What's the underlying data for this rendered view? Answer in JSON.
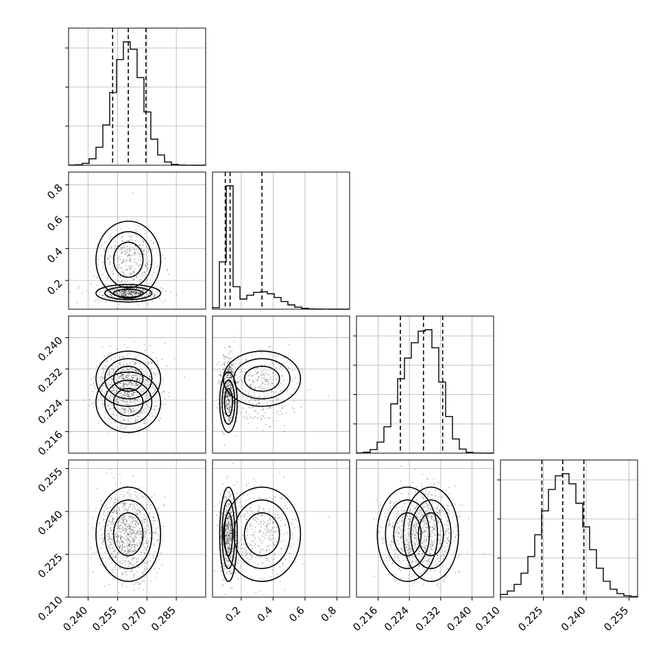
{
  "chart_data": {
    "type": "corner",
    "n_params": 4,
    "grid": true,
    "params": [
      {
        "range": [
          0.23,
          0.3
        ],
        "ticks": [
          "0.240",
          "0.255",
          "0.270",
          "0.285"
        ],
        "tick_values": [
          0.24,
          0.255,
          0.27,
          0.285
        ],
        "quantiles": [
          0.2525,
          0.2605,
          0.2695
        ],
        "mean": 0.2605,
        "sd": 0.0075
      },
      {
        "range": [
          0.02,
          0.88
        ],
        "ticks": [
          "0.2",
          "0.4",
          "0.6",
          "0.8"
        ],
        "tick_values": [
          0.2,
          0.4,
          0.6,
          0.8
        ],
        "quantiles": [
          0.1,
          0.13,
          0.33
        ],
        "mix": [
          {
            "w": 0.62,
            "mean": 0.12,
            "sd": 0.025
          },
          {
            "w": 0.38,
            "mean": 0.33,
            "sd": 0.11
          }
        ]
      },
      {
        "range": [
          0.2105,
          0.2455
        ],
        "ticks": [
          "0.216",
          "0.224",
          "0.232",
          "0.240"
        ],
        "tick_values": [
          0.216,
          0.224,
          0.232,
          0.24
        ],
        "quantiles": [
          0.2217,
          0.2276,
          0.2325
        ],
        "mix": [
          {
            "w": 0.45,
            "mean": 0.2235,
            "sd": 0.0035
          },
          {
            "w": 0.55,
            "mean": 0.2295,
            "sd": 0.0032
          }
        ]
      },
      {
        "range": [
          0.21,
          0.258
        ],
        "ticks": [
          "0.210",
          "0.225",
          "0.240",
          "0.255"
        ],
        "tick_values": [
          0.21,
          0.225,
          0.24,
          0.255
        ],
        "quantiles": [
          0.2245,
          0.2318,
          0.2392
        ],
        "mean": 0.232,
        "sd": 0.0075
      }
    ],
    "diag_y_ticks": [
      {
        "count": 3
      },
      {
        "count": 0
      },
      {
        "count": 4
      },
      {
        "count": 3
      }
    ]
  }
}
